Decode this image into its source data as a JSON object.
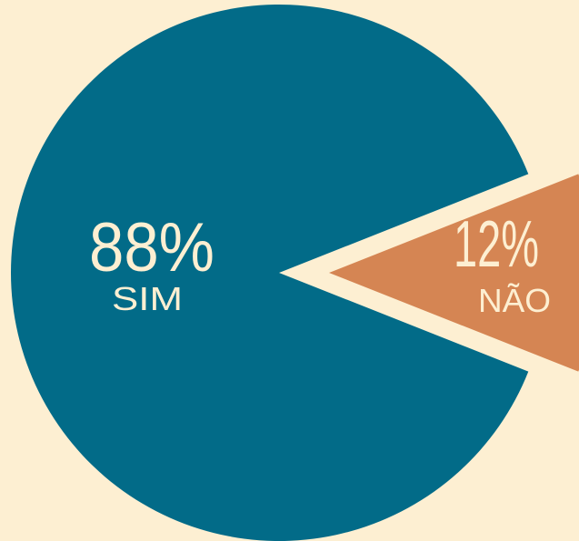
{
  "chart_data": {
    "type": "pie",
    "title": "",
    "categories": [
      "SIM",
      "NÃO"
    ],
    "values": [
      88,
      12
    ],
    "value_labels": [
      "88%",
      "12%"
    ],
    "colors": [
      "#026B88",
      "#D58553"
    ],
    "background": "#FDEFD2",
    "exploded": [
      "NÃO"
    ],
    "legend": "none"
  }
}
